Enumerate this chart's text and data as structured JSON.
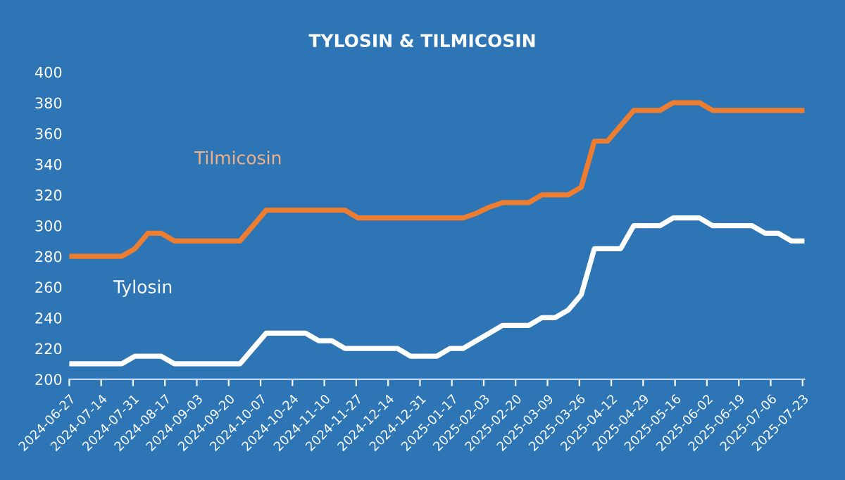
{
  "chart_data": {
    "type": "line",
    "title": "TYLOSIN & TILMICOSIN",
    "x": [
      "2024-06-27",
      "2024-07-04",
      "2024-07-11",
      "2024-07-18",
      "2024-07-25",
      "2024-08-01",
      "2024-08-08",
      "2024-08-15",
      "2024-08-22",
      "2024-08-29",
      "2024-09-05",
      "2024-09-12",
      "2024-09-19",
      "2024-09-26",
      "2024-10-03",
      "2024-10-10",
      "2024-10-17",
      "2024-10-24",
      "2024-10-31",
      "2024-11-07",
      "2024-11-14",
      "2024-11-21",
      "2024-11-28",
      "2024-12-05",
      "2024-12-12",
      "2024-12-19",
      "2024-12-26",
      "2025-01-02",
      "2025-01-09",
      "2025-01-16",
      "2025-01-23",
      "2025-01-30",
      "2025-02-06",
      "2025-02-13",
      "2025-02-20",
      "2025-02-27",
      "2025-03-06",
      "2025-03-13",
      "2025-03-20",
      "2025-03-27",
      "2025-04-03",
      "2025-04-10",
      "2025-04-17",
      "2025-04-24",
      "2025-05-01",
      "2025-05-08",
      "2025-05-15",
      "2025-05-22",
      "2025-05-29",
      "2025-06-05",
      "2025-06-12",
      "2025-06-19",
      "2025-06-26",
      "2025-07-03",
      "2025-07-10",
      "2025-07-17",
      "2025-07-24"
    ],
    "series": [
      {
        "name": "Tilmicosin",
        "color": "#ed7d31",
        "values": [
          280,
          280,
          280,
          280,
          280,
          285,
          295,
          295,
          290,
          290,
          290,
          290,
          290,
          290,
          300,
          310,
          310,
          310,
          310,
          310,
          310,
          310,
          305,
          305,
          305,
          305,
          305,
          305,
          305,
          305,
          305,
          308,
          312,
          315,
          315,
          315,
          320,
          320,
          320,
          325,
          355,
          355,
          365,
          375,
          375,
          375,
          380,
          380,
          380,
          375,
          375,
          375,
          375,
          375,
          375,
          375,
          375
        ]
      },
      {
        "name": "Tylosin",
        "color": "#ffffff",
        "values": [
          210,
          210,
          210,
          210,
          210,
          215,
          215,
          215,
          210,
          210,
          210,
          210,
          210,
          210,
          220,
          230,
          230,
          230,
          230,
          225,
          225,
          220,
          220,
          220,
          220,
          220,
          215,
          215,
          215,
          220,
          220,
          225,
          230,
          235,
          235,
          235,
          240,
          240,
          245,
          255,
          285,
          285,
          285,
          300,
          300,
          300,
          305,
          305,
          305,
          300,
          300,
          300,
          300,
          295,
          295,
          290,
          290
        ]
      }
    ],
    "xlim": [
      "2024-06-27",
      "2025-07-24"
    ],
    "xticks": [
      "2024-06-27",
      "2024-07-14",
      "2024-07-31",
      "2024-08-17",
      "2024-09-03",
      "2024-09-20",
      "2024-10-07",
      "2024-10-24",
      "2024-11-10",
      "2024-11-27",
      "2024-12-14",
      "2024-12-31",
      "2025-01-17",
      "2025-02-03",
      "2025-02-20",
      "2025-03-09",
      "2025-03-26",
      "2025-04-12",
      "2025-04-29",
      "2025-05-16",
      "2025-06-02",
      "2025-06-19",
      "2025-07-06",
      "2025-07-23"
    ],
    "ylim": [
      200,
      400
    ],
    "yticks": [
      200,
      220,
      240,
      260,
      280,
      300,
      320,
      340,
      360,
      380,
      400
    ],
    "grid": false,
    "legend": false,
    "marker": "none",
    "line_style": "solid"
  }
}
